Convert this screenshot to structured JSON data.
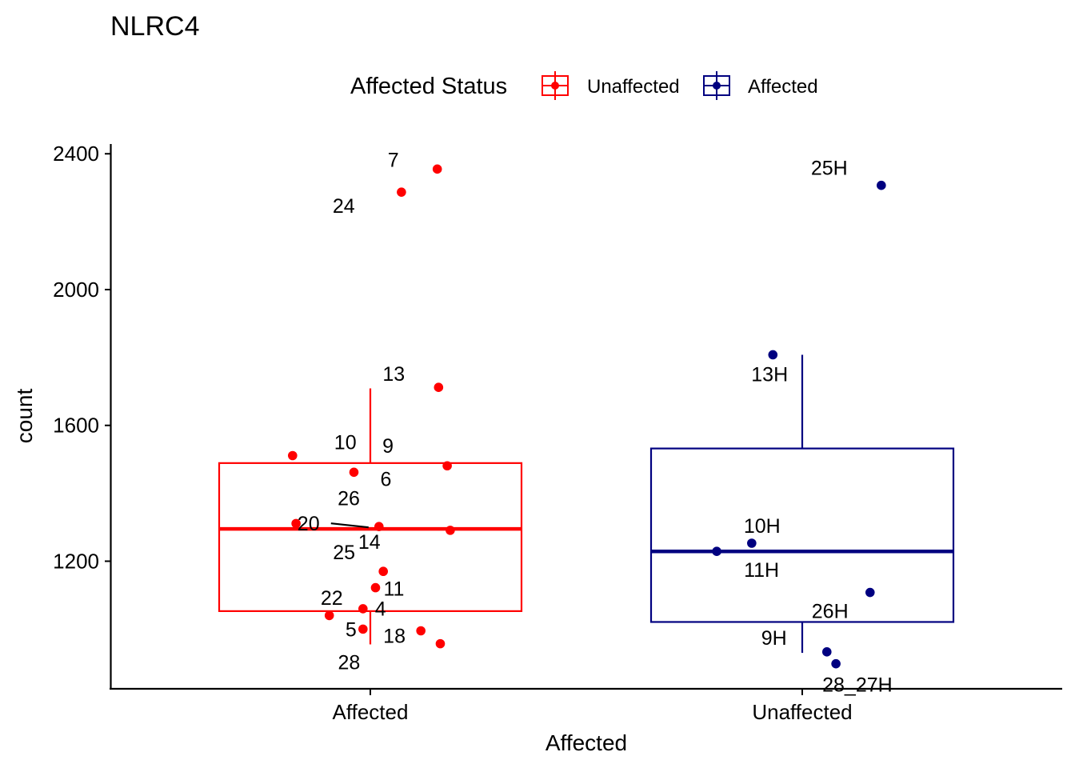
{
  "chart_data": {
    "type": "box",
    "title": "NLRC4",
    "xlabel": "Affected",
    "ylabel": "count",
    "ylim": [
      860,
      2420
    ],
    "yticks": [
      1200,
      1600,
      2000,
      2400
    ],
    "categories": [
      "Affected",
      "Unaffected"
    ],
    "legend": {
      "title": "Affected Status",
      "position": "top",
      "entries": [
        {
          "name": "Unaffected",
          "color": "#FF0000"
        },
        {
          "name": "Affected",
          "color": "#000080"
        }
      ]
    },
    "boxes": [
      {
        "category": "Affected",
        "color": "#FF0000",
        "whisker_low": 955,
        "q1": 1053,
        "median": 1295,
        "q3": 1489,
        "whisker_high": 1709
      },
      {
        "category": "Unaffected",
        "color": "#000080",
        "whisker_low": 930,
        "q1": 1021,
        "median": 1229,
        "q3": 1532,
        "whisker_high": 1808
      }
    ],
    "series": [
      {
        "name": "Unaffected",
        "category": "Affected",
        "color": "#FF0000",
        "points": [
          {
            "label": "7",
            "x": 1.155,
            "y": 2355
          },
          {
            "label": "24",
            "x": 1.072,
            "y": 2287
          },
          {
            "label": "13",
            "x": 1.158,
            "y": 1712
          },
          {
            "label": "10",
            "x": 0.82,
            "y": 1511
          },
          {
            "label": "9",
            "x": 1.178,
            "y": 1481
          },
          {
            "label": "6",
            "x": 0.962,
            "y": 1462
          },
          {
            "label": "26",
            "x": 0.828,
            "y": 1311
          },
          {
            "label": "20",
            "x": 1.02,
            "y": 1302
          },
          {
            "label": "14",
            "x": 1.185,
            "y": 1291
          },
          {
            "label": "25",
            "x": 1.03,
            "y": 1170
          },
          {
            "label": "11",
            "x": 1.012,
            "y": 1122
          },
          {
            "label": "22",
            "x": 0.983,
            "y": 1060
          },
          {
            "label": "4",
            "x": 0.905,
            "y": 1040
          },
          {
            "label": "5",
            "x": 0.983,
            "y": 1000
          },
          {
            "label": "18",
            "x": 1.117,
            "y": 995
          },
          {
            "label": "28",
            "x": 1.162,
            "y": 957
          }
        ]
      },
      {
        "name": "Affected",
        "category": "Unaffected",
        "color": "#000080",
        "points": [
          {
            "label": "25H",
            "x": 2.183,
            "y": 2307
          },
          {
            "label": "13H",
            "x": 1.932,
            "y": 1808
          },
          {
            "label": "10H",
            "x": 1.883,
            "y": 1253
          },
          {
            "label": "11H",
            "x": 1.802,
            "y": 1229
          },
          {
            "label": "26H",
            "x": 2.157,
            "y": 1108
          },
          {
            "label": "9H",
            "x": 2.057,
            "y": 933
          },
          {
            "label": "28_27H",
            "x": 2.078,
            "y": 898
          }
        ]
      }
    ]
  }
}
